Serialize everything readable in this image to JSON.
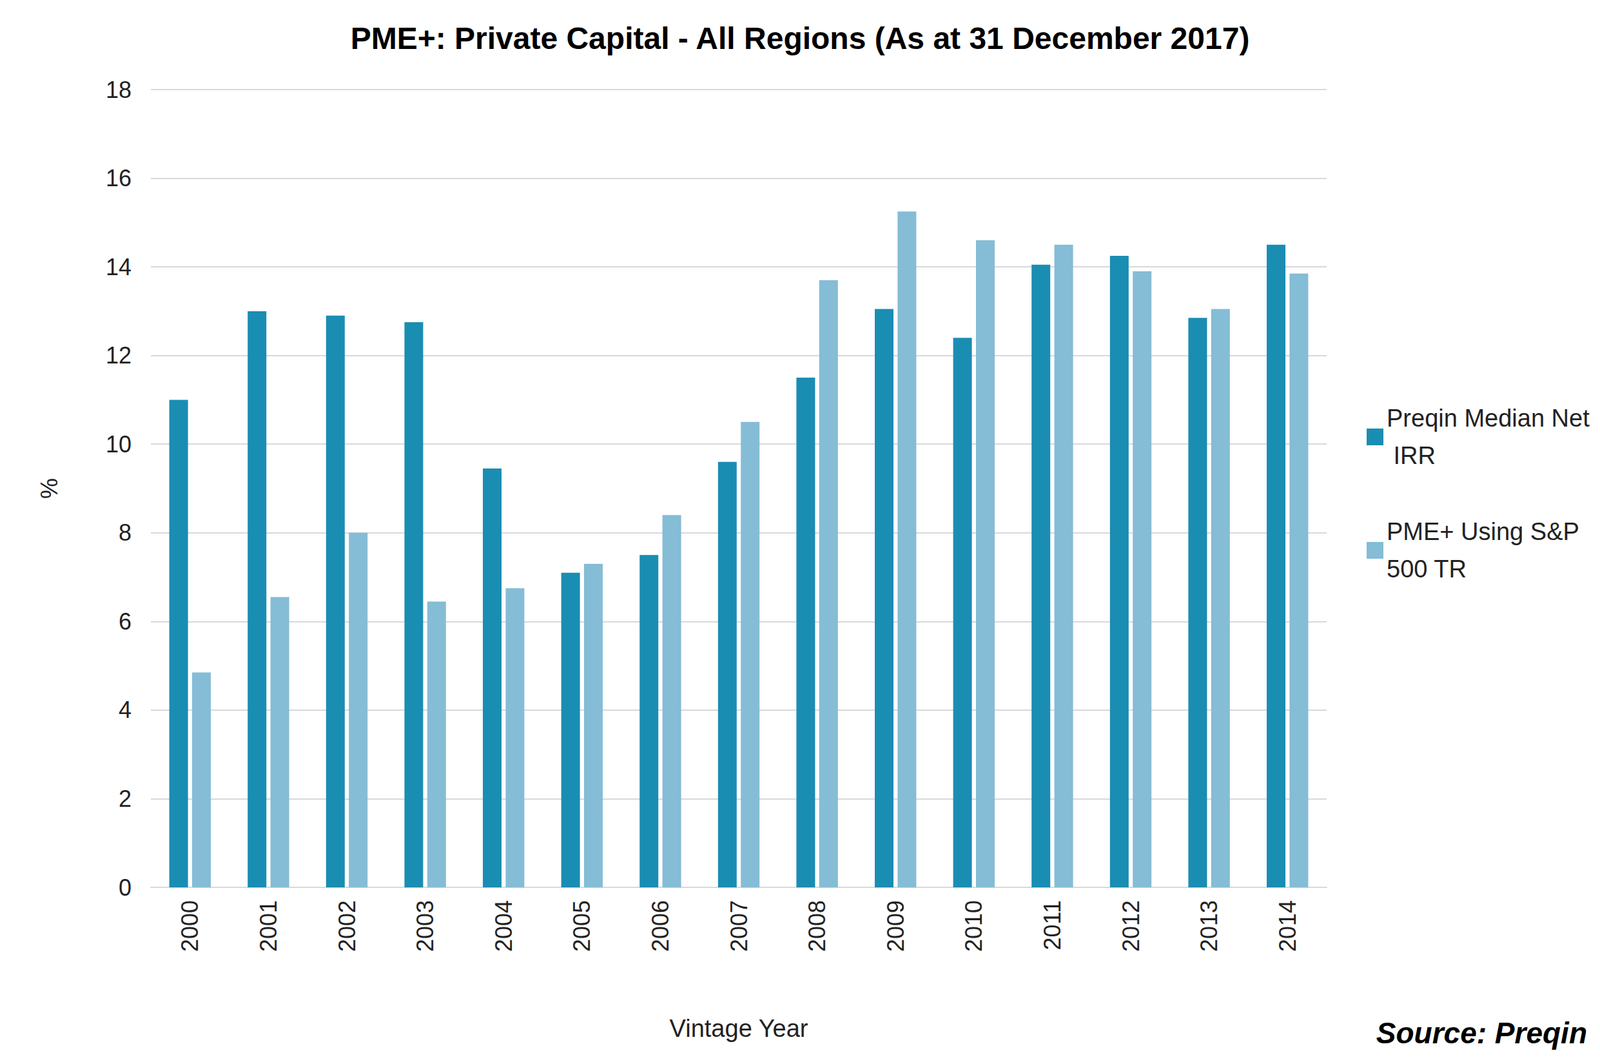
{
  "chart_data": {
    "type": "bar",
    "title": "PME+: Private Capital - All Regions (As at 31 December 2017)",
    "x_label": "Vintage Year",
    "y_label": "%",
    "source": "Source: Preqin",
    "categories": [
      "2000",
      "2001",
      "2002",
      "2003",
      "2004",
      "2005",
      "2006",
      "2007",
      "2008",
      "2009",
      "2010",
      "2011",
      "2012",
      "2013",
      "2014"
    ],
    "series": [
      {
        "name": "Preqin Median Net IRR",
        "color": "#1a8db3",
        "values": [
          11.0,
          13.0,
          12.9,
          12.75,
          9.45,
          7.1,
          7.5,
          9.6,
          11.5,
          13.05,
          12.4,
          14.05,
          14.25,
          12.85,
          14.5
        ]
      },
      {
        "name": "PME+ Using S&P 500 TR",
        "color": "#85bcd6",
        "values": [
          4.85,
          6.55,
          8.0,
          6.45,
          6.75,
          7.3,
          8.4,
          10.5,
          13.7,
          15.25,
          14.6,
          14.5,
          13.9,
          13.05,
          13.85
        ]
      }
    ],
    "ylim": [
      0,
      18
    ],
    "yticks": [
      0,
      2,
      4,
      6,
      8,
      10,
      12,
      14,
      16,
      18
    ],
    "grid": true,
    "legend": "right"
  }
}
